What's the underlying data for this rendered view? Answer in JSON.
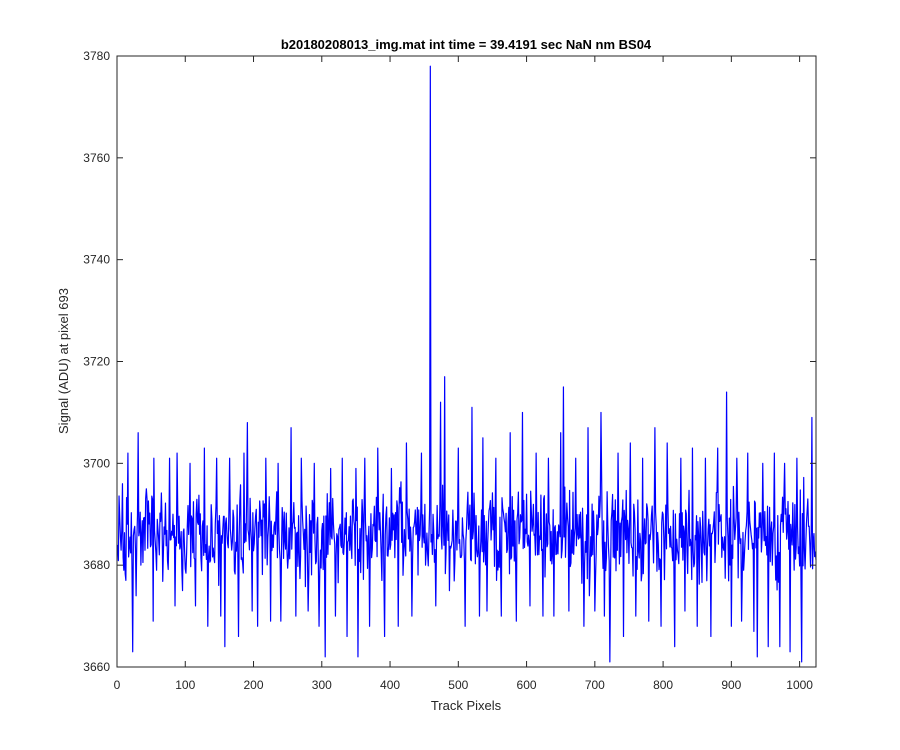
{
  "chart_data": {
    "type": "line",
    "title": "b20180208013_img.mat int time = 39.4191 sec  NaN nm BS04",
    "xlabel": "Track Pixels",
    "ylabel": "Signal (ADU) at pixel 693",
    "xlim": [
      0,
      1024
    ],
    "ylim": [
      3660,
      3780
    ],
    "xticks": [
      0,
      100,
      200,
      300,
      400,
      500,
      600,
      700,
      800,
      900,
      1000
    ],
    "yticks": [
      3660,
      3680,
      3700,
      3720,
      3740,
      3760,
      3780
    ],
    "grid": false,
    "line_color": "#0000ff",
    "series": [
      {
        "x_start": 1,
        "x_step": 1,
        "count": 1024,
        "baseline": 3686,
        "noise_amplitude": 8,
        "spike": {
          "x": 459,
          "y": 3778
        },
        "points": [
          [
            1,
            3684
          ],
          [
            8,
            3696
          ],
          [
            13,
            3677
          ],
          [
            16,
            3702
          ],
          [
            22,
            3679
          ],
          [
            23,
            3663
          ],
          [
            25,
            3687
          ],
          [
            28,
            3674
          ],
          [
            31,
            3706
          ],
          [
            35,
            3680
          ],
          [
            43,
            3695
          ],
          [
            53,
            3669
          ],
          [
            54,
            3701
          ],
          [
            58,
            3679
          ],
          [
            77,
            3701
          ],
          [
            85,
            3672
          ],
          [
            88,
            3702
          ],
          [
            96,
            3675
          ],
          [
            107,
            3700
          ],
          [
            115,
            3672
          ],
          [
            128,
            3703
          ],
          [
            133,
            3668
          ],
          [
            146,
            3701
          ],
          [
            152,
            3670
          ],
          [
            158,
            3664
          ],
          [
            165,
            3701
          ],
          [
            178,
            3666
          ],
          [
            186,
            3702
          ],
          [
            191,
            3708
          ],
          [
            198,
            3671
          ],
          [
            206,
            3668
          ],
          [
            218,
            3701
          ],
          [
            225,
            3669
          ],
          [
            236,
            3700
          ],
          [
            240,
            3669
          ],
          [
            255,
            3707
          ],
          [
            262,
            3670
          ],
          [
            270,
            3701
          ],
          [
            280,
            3671
          ],
          [
            289,
            3700
          ],
          [
            296,
            3668
          ],
          [
            305,
            3662
          ],
          [
            313,
            3699
          ],
          [
            320,
            3670
          ],
          [
            330,
            3701
          ],
          [
            337,
            3666
          ],
          [
            350,
            3699
          ],
          [
            353,
            3662
          ],
          [
            363,
            3701
          ],
          [
            370,
            3668
          ],
          [
            382,
            3703
          ],
          [
            392,
            3666
          ],
          [
            402,
            3699
          ],
          [
            412,
            3668
          ],
          [
            424,
            3704
          ],
          [
            432,
            3670
          ],
          [
            446,
            3702
          ],
          [
            452,
            3680
          ],
          [
            457,
            3686
          ],
          [
            459,
            3778
          ],
          [
            461,
            3686
          ],
          [
            467,
            3672
          ],
          [
            474,
            3712
          ],
          [
            480,
            3717
          ],
          [
            487,
            3675
          ],
          [
            500,
            3703
          ],
          [
            510,
            3668
          ],
          [
            520,
            3711
          ],
          [
            531,
            3670
          ],
          [
            536,
            3705
          ],
          [
            542,
            3671
          ],
          [
            555,
            3701
          ],
          [
            563,
            3670
          ],
          [
            576,
            3706
          ],
          [
            585,
            3669
          ],
          [
            594,
            3710
          ],
          [
            605,
            3672
          ],
          [
            614,
            3702
          ],
          [
            624,
            3670
          ],
          [
            632,
            3701
          ],
          [
            640,
            3670
          ],
          [
            650,
            3706
          ],
          [
            654,
            3715
          ],
          [
            662,
            3671
          ],
          [
            672,
            3701
          ],
          [
            684,
            3668
          ],
          [
            690,
            3707
          ],
          [
            700,
            3671
          ],
          [
            709,
            3710
          ],
          [
            714,
            3670
          ],
          [
            722,
            3661
          ],
          [
            734,
            3702
          ],
          [
            742,
            3666
          ],
          [
            752,
            3704
          ],
          [
            760,
            3670
          ],
          [
            770,
            3701
          ],
          [
            779,
            3669
          ],
          [
            788,
            3707
          ],
          [
            797,
            3668
          ],
          [
            806,
            3704
          ],
          [
            817,
            3664
          ],
          [
            826,
            3701
          ],
          [
            832,
            3671
          ],
          [
            843,
            3703
          ],
          [
            850,
            3668
          ],
          [
            862,
            3701
          ],
          [
            870,
            3666
          ],
          [
            880,
            3703
          ],
          [
            893,
            3714
          ],
          [
            900,
            3668
          ],
          [
            908,
            3701
          ],
          [
            915,
            3669
          ],
          [
            924,
            3702
          ],
          [
            933,
            3667
          ],
          [
            938,
            3662
          ],
          [
            946,
            3700
          ],
          [
            954,
            3664
          ],
          [
            963,
            3702
          ],
          [
            971,
            3664
          ],
          [
            978,
            3700
          ],
          [
            986,
            3663
          ],
          [
            996,
            3701
          ],
          [
            1003,
            3661
          ],
          [
            1012,
            3693
          ],
          [
            1018,
            3709
          ],
          [
            1024,
            3681
          ]
        ]
      }
    ]
  }
}
